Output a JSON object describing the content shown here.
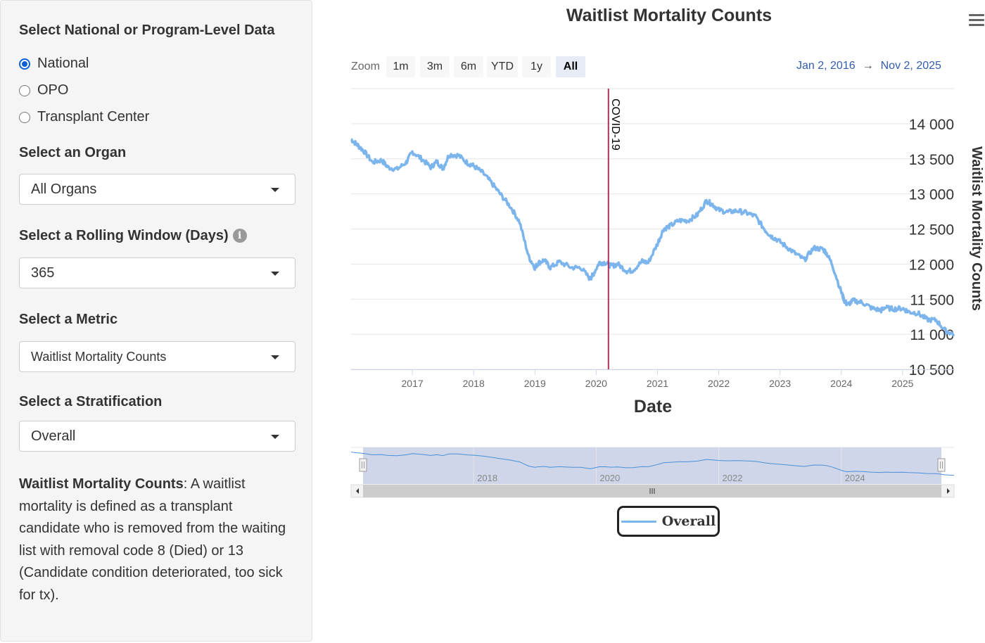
{
  "sidebar": {
    "level_label": "Select National or Program-Level Data",
    "level_options": [
      {
        "label": "National",
        "selected": true
      },
      {
        "label": "OPO",
        "selected": false
      },
      {
        "label": "Transplant Center",
        "selected": false
      }
    ],
    "organ_label": "Select an Organ",
    "organ_value": "All Organs",
    "window_label": "Select a Rolling Window (Days)",
    "window_info_glyph": "i",
    "window_value": "365",
    "metric_label": "Select a Metric",
    "metric_value": "Waitlist Mortality Counts",
    "strat_label": "Select a Stratification",
    "strat_value": "Overall",
    "desc_title": "Waitlist Mortality Counts",
    "desc_text": ": A waitlist mortality is defined as a transplant candidate who is removed from the waiting list with removal code 8 (Died) or 13 (Candidate condition deteriorated, too sick for tx)."
  },
  "chart_header": {
    "title": "Waitlist Mortality Counts",
    "menu_icon": "hamburger-menu-icon",
    "zoom_label": "Zoom",
    "zoom_buttons": [
      {
        "label": "1m",
        "selected": false
      },
      {
        "label": "3m",
        "selected": false
      },
      {
        "label": "6m",
        "selected": false
      },
      {
        "label": "YTD",
        "selected": false
      },
      {
        "label": "1y",
        "selected": false
      },
      {
        "label": "All",
        "selected": true
      }
    ],
    "range_from": "Jan 2, 2016",
    "range_arrow": "→",
    "range_to": "Nov 2, 2025"
  },
  "chart_data": {
    "type": "line",
    "title": "Waitlist Mortality Counts",
    "xlabel": "Date",
    "ylabel": "Waitlist Mortality Counts",
    "x_range": [
      2016.0,
      2025.84
    ],
    "ylim": [
      10500,
      14400
    ],
    "y_ticks": [
      10500,
      11000,
      11500,
      12000,
      12500,
      13000,
      13500,
      14000
    ],
    "y_tick_labels": [
      "10 500",
      "11 000",
      "11 500",
      "12 000",
      "12 500",
      "13 000",
      "13 500",
      "14 000"
    ],
    "x_ticks": [
      2017,
      2018,
      2019,
      2020,
      2021,
      2022,
      2023,
      2024,
      2025
    ],
    "x_tick_labels": [
      "2017",
      "2018",
      "2019",
      "2020",
      "2021",
      "2022",
      "2023",
      "2024",
      "2025"
    ],
    "color": "#7cb5ec",
    "grid": true,
    "plot_line": {
      "x": 2020.2,
      "label": "COVID-19",
      "color": "#b0305a"
    },
    "series": [
      {
        "name": "Overall",
        "x": [
          2016.0,
          2016.1,
          2016.2,
          2016.35,
          2016.5,
          2016.6,
          2016.75,
          2016.9,
          2017.0,
          2017.15,
          2017.3,
          2017.4,
          2017.5,
          2017.6,
          2017.75,
          2017.9,
          2018.0,
          2018.15,
          2018.3,
          2018.45,
          2018.6,
          2018.75,
          2018.9,
          2019.0,
          2019.05,
          2019.15,
          2019.25,
          2019.4,
          2019.6,
          2019.75,
          2019.9,
          2019.95,
          2020.05,
          2020.15,
          2020.25,
          2020.35,
          2020.5,
          2020.6,
          2020.75,
          2020.85,
          2021.0,
          2021.1,
          2021.2,
          2021.35,
          2021.5,
          2021.65,
          2021.8,
          2021.9,
          2022.0,
          2022.15,
          2022.3,
          2022.45,
          2022.6,
          2022.75,
          2022.85,
          2022.95,
          2023.1,
          2023.25,
          2023.4,
          2023.55,
          2023.7,
          2023.75,
          2023.85,
          2024.0,
          2024.05,
          2024.1,
          2024.2,
          2024.35,
          2024.5,
          2024.65,
          2024.7,
          2024.85,
          2025.0,
          2025.1,
          2025.25,
          2025.4,
          2025.55,
          2025.7,
          2025.84
        ],
        "values": [
          13780,
          13700,
          13620,
          13450,
          13480,
          13380,
          13350,
          13450,
          13600,
          13500,
          13380,
          13460,
          13360,
          13560,
          13550,
          13440,
          13400,
          13300,
          13150,
          12980,
          12820,
          12600,
          12100,
          11950,
          12010,
          12060,
          11950,
          12030,
          11950,
          11950,
          11790,
          11850,
          12020,
          12020,
          11970,
          12000,
          11900,
          11910,
          12040,
          12020,
          12290,
          12500,
          12540,
          12620,
          12620,
          12700,
          12900,
          12850,
          12770,
          12740,
          12760,
          12730,
          12680,
          12490,
          12400,
          12350,
          12250,
          12150,
          12060,
          12230,
          12210,
          12170,
          12000,
          11600,
          11480,
          11420,
          11480,
          11450,
          11370,
          11340,
          11380,
          11360,
          11370,
          11320,
          11300,
          11210,
          11200,
          11050,
          11000
        ]
      }
    ],
    "navigator_ticks": [
      "2018",
      "2020",
      "2022",
      "2024"
    ],
    "legend": [
      "Overall"
    ]
  }
}
